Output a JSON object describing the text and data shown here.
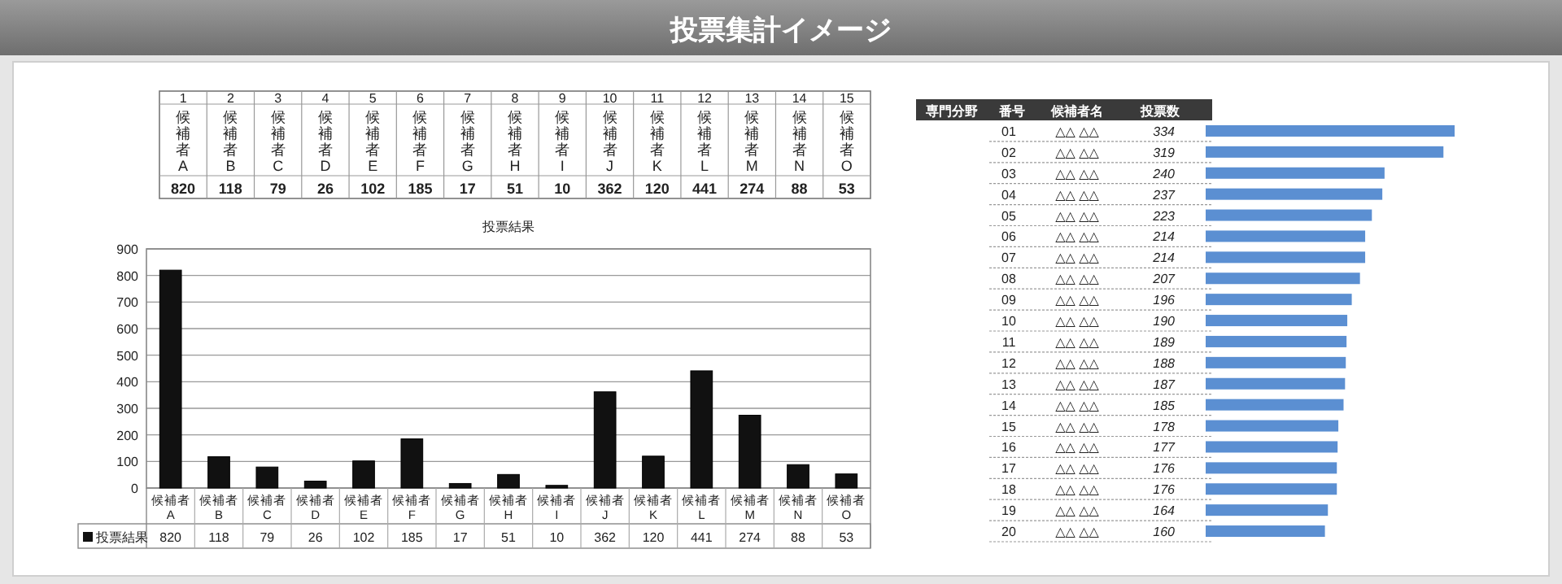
{
  "chart_data": [
    {
      "type": "bar",
      "title": "投票集計イメージ",
      "subtitle": "投票結果",
      "annotations": [
        "1",
        "2",
        "3",
        "4",
        "5",
        "6",
        "7",
        "8",
        "9",
        "10",
        "11",
        "12",
        "13",
        "14",
        "15"
      ],
      "categories": [
        "候補者A",
        "候補者B",
        "候補者C",
        "候補者D",
        "候補者E",
        "候補者F",
        "候補者G",
        "候補者H",
        "候補者I",
        "候補者J",
        "候補者K",
        "候補者L",
        "候補者M",
        "候補者N",
        "候補者O"
      ],
      "series": [
        {
          "name": "投票結果",
          "color": "#111111",
          "values": [
            820,
            118,
            79,
            26,
            102,
            185,
            17,
            51,
            10,
            362,
            120,
            441,
            274,
            88,
            53
          ],
          "value_labels": [
            "820",
            "118",
            "79",
            "26",
            "102",
            "185",
            "17",
            "51",
            "10",
            "362",
            "120",
            "441",
            "274",
            "88",
            "53"
          ]
        }
      ],
      "ylim": [
        0,
        900
      ],
      "yticks": [
        0,
        100,
        200,
        300,
        400,
        500,
        600,
        700,
        800,
        900
      ],
      "grid": "y",
      "legend": "bottom left",
      "data_labels": true
    },
    {
      "type": "bar",
      "orientation": "horizontal",
      "categories": [
        "01",
        "02",
        "03",
        "04",
        "05",
        "06",
        "07",
        "08",
        "09",
        "10",
        "11",
        "12",
        "13",
        "14",
        "15",
        "16",
        "17",
        "18",
        "19",
        "20"
      ],
      "series": [
        {
          "color": "#5b8fd2",
          "values": [
            334,
            319,
            240,
            237,
            223,
            214,
            214,
            207,
            196,
            190,
            189,
            188,
            187,
            185,
            178,
            177,
            176,
            176,
            164,
            160
          ]
        }
      ],
      "data_labels": true,
      "annotations": [
        "専門分野",
        "番号",
        "候補者名",
        "投票数",
        "△△ △△",
        "△△ △△",
        "△△ △△",
        "△△ △△",
        "△△ △△",
        "△△ △△",
        "△△ △△",
        "△△ △△",
        "△△ △△",
        "△△ △△",
        "△△ △△",
        "△△ △△",
        "△△ △△",
        "△△ △△",
        "△△ △△",
        "△△ △△",
        "△△ △△",
        "△△ △△",
        "△△ △△",
        "△△ △△"
      ]
    }
  ]
}
